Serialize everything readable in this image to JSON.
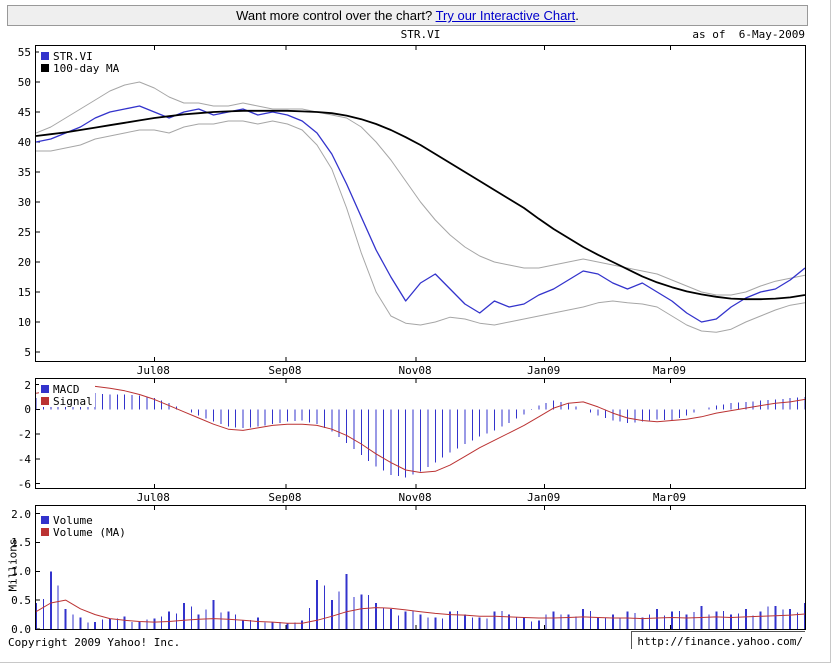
{
  "banner": {
    "text_before_link": "Want more control over the chart? ",
    "link_text": "Try our Interactive Chart",
    "text_after_link": "."
  },
  "header": {
    "title": "STR.VI",
    "as_of": "as of  6-May-2009"
  },
  "footer": {
    "copyright": "Copyright 2009 Yahoo! Inc.",
    "source_url": "http://finance.yahoo.com/"
  },
  "colors": {
    "price": "#3333cc",
    "ma": "#000000",
    "band": "#a6a6a6",
    "macd": "#3333cc",
    "signal": "#bb3333",
    "volume": "#3333cc",
    "volume_ma": "#bb3333",
    "link": "#0000cc",
    "frame": "#000000",
    "banner_bg": "#efefef"
  },
  "chart_data": [
    {
      "name": "price",
      "type": "line",
      "title": "STR.VI",
      "x_start": "6-May-2008",
      "x_end": "6-May-2009",
      "x_span_weeks": 52,
      "x_ticks": [
        {
          "label": "Jul08",
          "week": 8
        },
        {
          "label": "Sep08",
          "week": 16.9
        },
        {
          "label": "Nov08",
          "week": 25.7
        },
        {
          "label": "Jan09",
          "week": 34.4
        },
        {
          "label": "Mar09",
          "week": 42.9
        }
      ],
      "ylim": [
        3.5,
        56
      ],
      "y_ticks": [
        {
          "v": 55,
          "label": "55"
        },
        {
          "v": 50,
          "label": "50"
        },
        {
          "v": 45,
          "label": "45"
        },
        {
          "v": 40,
          "label": "40"
        },
        {
          "v": 35,
          "label": "35"
        },
        {
          "v": 30,
          "label": "30"
        },
        {
          "v": 25,
          "label": "25"
        },
        {
          "v": 20,
          "label": "20"
        },
        {
          "v": 15,
          "label": "15"
        },
        {
          "v": 10,
          "label": "10"
        },
        {
          "v": 5,
          "label": "5"
        }
      ],
      "legend": [
        {
          "label": "STR.VI",
          "color_key": "price"
        },
        {
          "label": "100-day MA",
          "color_key": "ma"
        }
      ],
      "series": [
        {
          "name": "Upper band",
          "color_key": "band",
          "width": 1,
          "values": [
            41.5,
            42.5,
            44.0,
            45.5,
            47.0,
            48.5,
            49.5,
            50.0,
            49.0,
            47.5,
            46.5,
            46.5,
            46.0,
            46.0,
            46.5,
            46.0,
            45.5,
            45.5,
            45.5,
            45.0,
            44.5,
            44.0,
            42.5,
            40.0,
            37.0,
            33.5,
            30.0,
            27.0,
            24.5,
            22.5,
            21.0,
            20.0,
            19.5,
            19.0,
            19.0,
            19.5,
            20.0,
            20.5,
            20.0,
            19.5,
            19.0,
            18.5,
            18.0,
            17.0,
            16.0,
            15.0,
            14.5,
            14.5,
            15.0,
            16.0,
            16.8,
            17.3,
            17.8
          ]
        },
        {
          "name": "Lower band",
          "color_key": "band",
          "width": 1,
          "values": [
            38.5,
            38.5,
            39.0,
            39.5,
            40.5,
            41.0,
            41.5,
            42.0,
            42.0,
            41.5,
            42.5,
            43.0,
            43.0,
            43.5,
            43.5,
            43.0,
            43.5,
            43.0,
            42.0,
            39.5,
            35.5,
            29.0,
            21.5,
            15.0,
            11.0,
            9.8,
            9.5,
            10.0,
            10.8,
            10.5,
            9.8,
            9.5,
            10.0,
            10.5,
            11.0,
            11.5,
            12.0,
            12.5,
            13.2,
            13.5,
            13.2,
            13.0,
            12.5,
            11.0,
            9.5,
            8.5,
            8.3,
            8.8,
            10.0,
            11.0,
            12.0,
            12.8,
            13.2
          ]
        },
        {
          "name": "STR.VI close",
          "color_key": "price",
          "width": 1.3,
          "values": [
            40.0,
            40.5,
            41.5,
            42.5,
            44.0,
            45.0,
            45.5,
            46.0,
            45.0,
            44.0,
            45.0,
            45.5,
            44.5,
            45.0,
            45.5,
            44.5,
            45.0,
            44.5,
            43.5,
            41.5,
            38.0,
            33.0,
            27.5,
            22.0,
            17.5,
            13.5,
            16.5,
            18.0,
            15.5,
            13.0,
            11.5,
            13.5,
            12.5,
            13.0,
            14.5,
            15.5,
            17.0,
            18.5,
            18.0,
            16.5,
            15.5,
            16.5,
            15.0,
            13.5,
            11.5,
            10.0,
            10.5,
            12.5,
            14.0,
            15.0,
            15.5,
            17.0,
            19.0
          ]
        },
        {
          "name": "100-day MA",
          "color_key": "ma",
          "width": 1.8,
          "values": [
            41.0,
            41.3,
            41.6,
            42.0,
            42.4,
            42.8,
            43.2,
            43.6,
            44.0,
            44.3,
            44.6,
            44.8,
            45.0,
            45.1,
            45.2,
            45.2,
            45.2,
            45.2,
            45.1,
            45.0,
            44.8,
            44.4,
            43.8,
            43.0,
            42.0,
            40.8,
            39.5,
            38.0,
            36.5,
            35.0,
            33.5,
            32.0,
            30.5,
            29.0,
            27.2,
            25.5,
            24.0,
            22.5,
            21.2,
            20.0,
            18.8,
            17.6,
            16.6,
            15.8,
            15.1,
            14.6,
            14.2,
            13.9,
            13.8,
            13.8,
            13.9,
            14.1,
            14.5
          ]
        }
      ]
    },
    {
      "name": "macd",
      "type": "bar+line",
      "ylim": [
        -6.35,
        2.45
      ],
      "y_ticks": [
        {
          "v": 2,
          "label": "2"
        },
        {
          "v": 0,
          "label": "0"
        },
        {
          "v": -2,
          "label": "-2"
        },
        {
          "v": -4,
          "label": "-4"
        },
        {
          "v": -6,
          "label": "-6"
        }
      ],
      "legend": [
        {
          "label": "MACD",
          "color_key": "macd"
        },
        {
          "label": "Signal",
          "color_key": "signal"
        }
      ],
      "bars": {
        "name": "MACD",
        "color_key": "macd",
        "base": 0,
        "values": [
          0.9,
          1.1,
          1.3,
          1.4,
          1.3,
          1.2,
          1.2,
          1.1,
          0.9,
          0.5,
          0.0,
          -0.5,
          -1.0,
          -1.4,
          -1.5,
          -1.4,
          -1.2,
          -1.0,
          -0.9,
          -1.2,
          -1.8,
          -2.7,
          -3.7,
          -4.6,
          -5.3,
          -5.5,
          -5.0,
          -4.3,
          -3.5,
          -2.8,
          -2.2,
          -1.7,
          -1.1,
          -0.4,
          0.3,
          0.7,
          0.5,
          0.0,
          -0.5,
          -0.9,
          -1.1,
          -1.0,
          -0.8,
          -0.9,
          -0.5,
          0.0,
          0.3,
          0.5,
          0.6,
          0.7,
          0.8,
          0.9,
          1.0
        ]
      },
      "series": [
        {
          "name": "Signal",
          "color_key": "signal",
          "width": 1,
          "values": [
            1.3,
            1.5,
            1.7,
            1.9,
            1.85,
            1.7,
            1.5,
            1.2,
            0.8,
            0.3,
            -0.2,
            -0.7,
            -1.2,
            -1.6,
            -1.7,
            -1.5,
            -1.3,
            -1.2,
            -1.2,
            -1.3,
            -1.6,
            -2.1,
            -2.8,
            -3.6,
            -4.3,
            -4.9,
            -5.1,
            -5.0,
            -4.5,
            -3.8,
            -3.1,
            -2.5,
            -1.9,
            -1.3,
            -0.6,
            0.1,
            0.5,
            0.6,
            0.2,
            -0.3,
            -0.7,
            -0.9,
            -1.0,
            -0.9,
            -0.8,
            -0.6,
            -0.3,
            -0.1,
            0.1,
            0.3,
            0.5,
            0.6,
            0.8
          ]
        }
      ]
    },
    {
      "name": "volume",
      "type": "bar+line",
      "ylabel": "Millions",
      "ylim": [
        0,
        2.13
      ],
      "y_ticks": [
        {
          "v": 2,
          "label": "2.0"
        },
        {
          "v": 1.5,
          "label": "1.5"
        },
        {
          "v": 1,
          "label": "1.0"
        },
        {
          "v": 0.5,
          "label": "0.5"
        },
        {
          "v": 0,
          "label": "0.0"
        }
      ],
      "legend": [
        {
          "label": "Volume",
          "color_key": "volume"
        },
        {
          "label": "Volume (MA)",
          "color_key": "volume_ma"
        }
      ],
      "bars": {
        "name": "Volume",
        "color_key": "volume",
        "base": 0,
        "values": [
          0.45,
          1.0,
          0.35,
          0.2,
          0.12,
          0.18,
          0.22,
          0.12,
          0.18,
          0.3,
          0.45,
          0.25,
          0.5,
          0.3,
          0.15,
          0.2,
          0.12,
          0.1,
          0.15,
          0.85,
          0.5,
          0.95,
          0.6,
          0.45,
          0.35,
          0.3,
          0.25,
          0.2,
          0.3,
          0.25,
          0.2,
          0.3,
          0.25,
          0.2,
          0.15,
          0.3,
          0.25,
          0.35,
          0.2,
          0.25,
          0.3,
          0.2,
          0.35,
          0.3,
          0.25,
          0.4,
          0.3,
          0.25,
          0.35,
          0.3,
          0.4,
          0.35,
          0.45
        ]
      },
      "series": [
        {
          "name": "Volume MA",
          "color_key": "volume_ma",
          "width": 1,
          "values": [
            0.3,
            0.45,
            0.5,
            0.35,
            0.25,
            0.18,
            0.15,
            0.13,
            0.12,
            0.13,
            0.15,
            0.17,
            0.18,
            0.17,
            0.15,
            0.13,
            0.12,
            0.1,
            0.1,
            0.15,
            0.22,
            0.3,
            0.35,
            0.37,
            0.36,
            0.33,
            0.3,
            0.27,
            0.25,
            0.24,
            0.22,
            0.22,
            0.21,
            0.2,
            0.19,
            0.19,
            0.2,
            0.21,
            0.2,
            0.19,
            0.19,
            0.18,
            0.19,
            0.2,
            0.19,
            0.2,
            0.21,
            0.2,
            0.21,
            0.22,
            0.23,
            0.24,
            0.26
          ]
        }
      ]
    }
  ]
}
